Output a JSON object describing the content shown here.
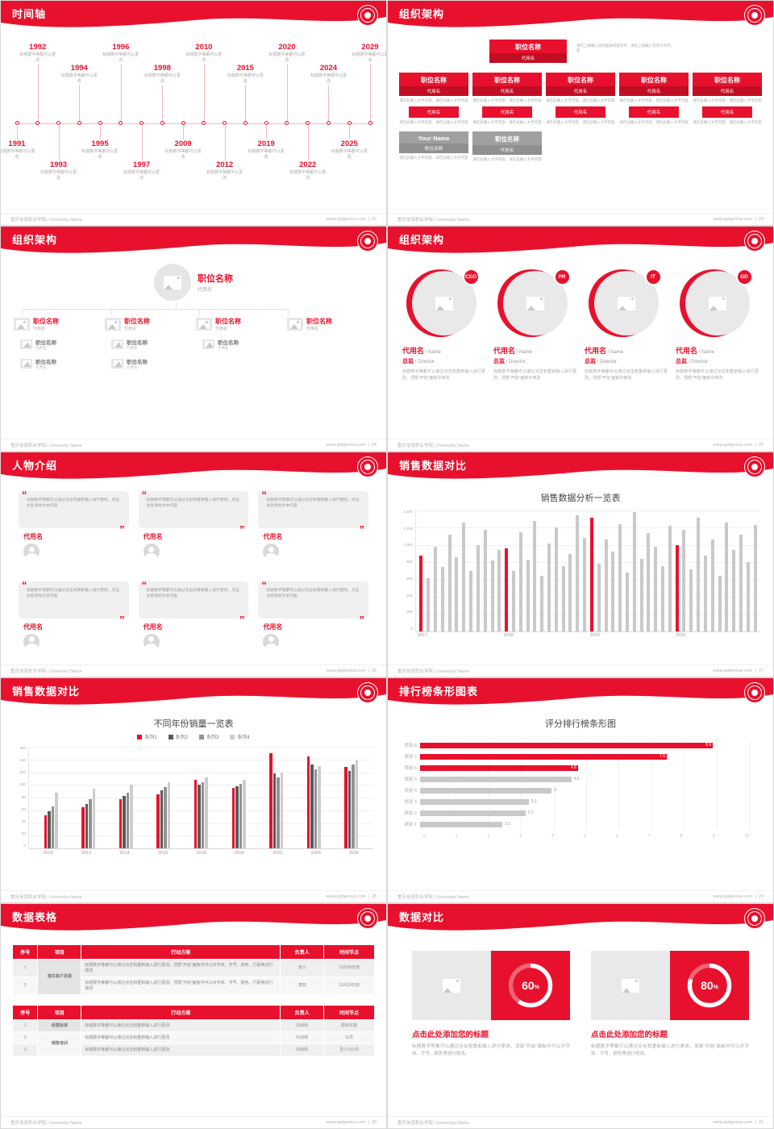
{
  "global": {
    "footer_left": "重庆信息职业学院 | University Name",
    "footer_site": "www.pptgenius.com",
    "footer_sep": "|",
    "colors": {
      "red": "#e8112d",
      "red_dark": "#c10d23",
      "gray_box": "#a0a0a0"
    }
  },
  "slides": {
    "s22": {
      "title": "时间轴",
      "page": "22",
      "timeline": {
        "caption": "标题数字等都可以更改",
        "top": [
          "1992",
          "1994",
          "1996",
          "1998",
          "2010",
          "2015",
          "2020",
          "2024",
          "2029"
        ],
        "bottom": [
          "1991",
          "1993",
          "1995",
          "1997",
          "2009",
          "2012",
          "2019",
          "2022",
          "2025"
        ]
      }
    },
    "s23": {
      "title": "组织架构",
      "page": "23",
      "top_box": {
        "title": "职位名称",
        "sub": "代用名"
      },
      "top_note": "请在上端输入您的相关内容文字，请在上端输入您的文字内容",
      "columns": [
        {
          "title": "职位名称",
          "sub": "代用名",
          "note": "请在此输入文字内容，请在此输入文字内容",
          "tag": "代用名",
          "tag_note": "请在此输入文字内容，请在此输入文字内容"
        },
        {
          "title": "职位名称",
          "sub": "代用名",
          "note": "请在此输入文字内容，请在此输入文字内容",
          "tag": "代用名",
          "tag_note": "请在此输入文字内容，请在此输入文字内容"
        },
        {
          "title": "职位名称",
          "sub": "代用名",
          "note": "请在此输入文字内容，请在此输入文字内容",
          "tag": "代用名",
          "tag_note": "请在此输入文字内容，请在此输入文字内容"
        },
        {
          "title": "职位名称",
          "sub": "代用名",
          "note": "请在此输入文字内容，请在此输入文字内容",
          "tag": "代用名",
          "tag_note": "请在此输入文字内容，请在此输入文字内容"
        },
        {
          "title": "职位名称",
          "sub": "代用名",
          "note": "请在此输入文字内容，请在此输入文字内容",
          "tag": "代用名",
          "tag_note": "请在此输入文字内容，请在此输入文字内容"
        }
      ],
      "bottom_boxes": [
        {
          "title": "Your Name",
          "sub": "职位名称",
          "note": "请在此输入文字内容，请在此输入文字内容"
        },
        {
          "title": "职位名称",
          "sub": "代用名",
          "note": "请在此输入文字内容，请在此输入文字内容"
        }
      ]
    },
    "s24": {
      "title": "组织架构",
      "page": "24",
      "root": {
        "title": "职位名称",
        "sub": "代用名"
      },
      "branches": [
        {
          "title": "职位名称",
          "sub": "代用名",
          "children": [
            {
              "title": "职位名称",
              "sub": "代用名"
            },
            {
              "title": "职位名称",
              "sub": "代用名"
            }
          ]
        },
        {
          "title": "职位名称",
          "sub": "代用名",
          "children": [
            {
              "title": "职位名称",
              "sub": "代用名"
            },
            {
              "title": "职位名称",
              "sub": "代用名"
            }
          ]
        },
        {
          "title": "职位名称",
          "sub": "代用名",
          "children": [
            {
              "title": "职位名称",
              "sub": "代用名"
            }
          ]
        },
        {
          "title": "职位名称",
          "sub": "代用名",
          "children": []
        }
      ]
    },
    "s25": {
      "title": "组织架构",
      "page": "25",
      "members": [
        {
          "badge": "CEO",
          "name": "代用名",
          "name_en": "Name",
          "role": "总监",
          "role_en": "Director",
          "caption": "标题数字等都可以通过点击和重新输入进行更改，顶部“开始”面板中修改"
        },
        {
          "badge": "PR",
          "name": "代用名",
          "name_en": "Name",
          "role": "总监",
          "role_en": "Director",
          "caption": "标题数字等都可以通过点击和重新输入进行更改，顶部“开始”面板中修改"
        },
        {
          "badge": "IT",
          "name": "代用名",
          "name_en": "Name",
          "role": "总监",
          "role_en": "Director",
          "caption": "标题数字等都可以通过点击和重新输入进行更改，顶部“开始”面板中修改"
        },
        {
          "badge": "GD",
          "name": "代用名",
          "name_en": "Name",
          "role": "总监",
          "role_en": "Director",
          "caption": "标题数字等都可以通过点击和重新输入进行更改，顶部“开始”面板中修改"
        }
      ]
    },
    "s26": {
      "title": "人物介绍",
      "page": "26",
      "cards": [
        {
          "quote": "标题数字等都可以通过点击和重新输入进行更改，点击此处添加文本内容",
          "name": "代用名"
        },
        {
          "quote": "标题数字等都可以通过点击和重新输入进行更改，点击此处添加文本内容",
          "name": "代用名"
        },
        {
          "quote": "标题数字等都可以通过点击和重新输入进行更改，点击此处添加文本内容",
          "name": "代用名"
        },
        {
          "quote": "标题数字等都可以通过点击和重新输入进行更改，点击此处添加文本内容",
          "name": "代用名"
        },
        {
          "quote": "标题数字等都可以通过点击和重新输入进行更改，点击此处添加文本内容",
          "name": "代用名"
        },
        {
          "quote": "标题数字等都可以通过点击和重新输入进行更改，点击此处添加文本内容",
          "name": "代用名"
        }
      ]
    },
    "s27": {
      "title": "销售数据对比",
      "page": "27"
    },
    "s28": {
      "title": "销售数据对比",
      "page": "28"
    },
    "s29": {
      "title": "排行榜条形图表",
      "page": "29"
    },
    "s30": {
      "title": "数据表格",
      "page": "30",
      "table1": {
        "headers": [
          "序号",
          "项目",
          "行动方案",
          "负责人",
          "时间节点"
        ],
        "rows": [
          {
            "no": "1",
            "project": "落实客户发展",
            "plan": "标题数字等都可以通过点击和重新输入进行更改，顶部“开始”面板中可以对字体、字号、颜色、行距等进行修改",
            "owner": "张三",
            "time": "11月30日前"
          },
          {
            "no": "2",
            "project": "",
            "plan": "标题数字等都可以通过点击和重新输入进行更改，顶部“开始”面板中可以对字体、字号、颜色、行距等进行修改",
            "owner": "李四",
            "time": "11月15日前"
          }
        ]
      },
      "table2": {
        "headers": [
          "序号",
          "项目",
          "行动方案",
          "负责人",
          "时间节点"
        ],
        "rows": [
          {
            "no": "1",
            "project": "经营标准",
            "plan": "标题数字等都可以通过点击和重新输入进行更改",
            "owner": "内训师",
            "time": "即日实施"
          },
          {
            "no": "2",
            "project": "销售培训",
            "plan": "标题数字等都可以通过点击和重新输入进行更改",
            "owner": "内训师",
            "time": "11月"
          },
          {
            "no": "3",
            "project": "",
            "plan": "标题数字等都可以通过点击和重新输入进行更改",
            "owner": "内训师",
            "time": "至少1次/月"
          }
        ]
      }
    },
    "s31": {
      "title": "数据对比",
      "page": "31",
      "panels": [
        {
          "heading": "点击此处添加您的标题",
          "caption": "标题数字等都可以通过点击和重新输入进行更改，顶部“开始”面板中可以对字体、字号、颜色等进行修改。"
        },
        {
          "heading": "点击此处添加您的标题",
          "caption": "标题数字等都可以通过点击和重新输入进行更改，顶部“开始”面板中可以对字体、字号、颜色等进行修改。"
        }
      ]
    }
  },
  "chart_data": [
    {
      "type": "bar",
      "title": "销售数据分析一览表",
      "groups": [
        "2017",
        "2018",
        "2019",
        "2020"
      ],
      "values": [
        880,
        620,
        980,
        750,
        1120,
        860,
        1260,
        700,
        1000,
        1180,
        820,
        940,
        960,
        700,
        1150,
        830,
        1280,
        640,
        1020,
        1200,
        760,
        900,
        1340,
        1080,
        1320,
        780,
        1060,
        920,
        1240,
        680,
        1380,
        840,
        1140,
        980,
        760,
        1220,
        1000,
        1180,
        720,
        1320,
        880,
        1060,
        640,
        1260,
        940,
        1120,
        800,
        1230
      ],
      "highlight_indices": [
        0,
        12,
        24,
        36
      ],
      "highlight_color": "#e8112d",
      "bar_color": "#c9c9c9",
      "ylim": [
        0,
        1400
      ],
      "ytick_labels": [
        "1,400",
        "1,200",
        "1,000",
        "800",
        "600",
        "400",
        "200",
        "0"
      ]
    },
    {
      "type": "grouped-bar",
      "title": "不同年份销量一览表",
      "categories": [
        "2010",
        "2012",
        "2014",
        "2016",
        "2018",
        "2020",
        "2022",
        "2024",
        "2026"
      ],
      "series": [
        {
          "name": "系列1",
          "color": "#e8112d",
          "values": [
            52,
            65,
            78,
            85,
            108,
            95,
            150,
            145,
            128
          ]
        },
        {
          "name": "系列2",
          "color": "#595959",
          "values": [
            58,
            70,
            82,
            92,
            100,
            98,
            118,
            132,
            122
          ]
        },
        {
          "name": "系列3",
          "color": "#929292",
          "values": [
            66,
            78,
            88,
            96,
            104,
            102,
            112,
            124,
            132
          ]
        },
        {
          "name": "系列4",
          "color": "#cdcdcd",
          "values": [
            88,
            94,
            100,
            104,
            112,
            108,
            120,
            130,
            138
          ]
        }
      ],
      "ylim": [
        0,
        160
      ],
      "ytick_labels": [
        "160",
        "140",
        "120",
        "100",
        "80",
        "60",
        "40",
        "20",
        "0"
      ]
    },
    {
      "type": "hbar",
      "title": "评分排行榜条形图",
      "items": [
        {
          "label": "类别 8",
          "value": 8.9,
          "highlight": true
        },
        {
          "label": "类别 7",
          "value": 7.5,
          "highlight": true
        },
        {
          "label": "类别 6",
          "value": 4.8,
          "highlight": true
        },
        {
          "label": "类别 5",
          "value": 4.6,
          "highlight": false
        },
        {
          "label": "类别 4",
          "value": 4,
          "highlight": false
        },
        {
          "label": "类别 3",
          "value": 3.3,
          "highlight": false
        },
        {
          "label": "类别 2",
          "value": 3.2,
          "highlight": false
        },
        {
          "label": "类别 1",
          "value": 2.5,
          "highlight": false
        }
      ],
      "xlim": [
        0,
        10
      ],
      "xtick_labels": [
        "0",
        "1",
        "2",
        "3",
        "4",
        "5",
        "6",
        "7",
        "8",
        "9",
        "10"
      ]
    },
    {
      "type": "donut",
      "unit": "%",
      "values": [
        {
          "percent": 60
        },
        {
          "percent": 80
        }
      ]
    }
  ]
}
